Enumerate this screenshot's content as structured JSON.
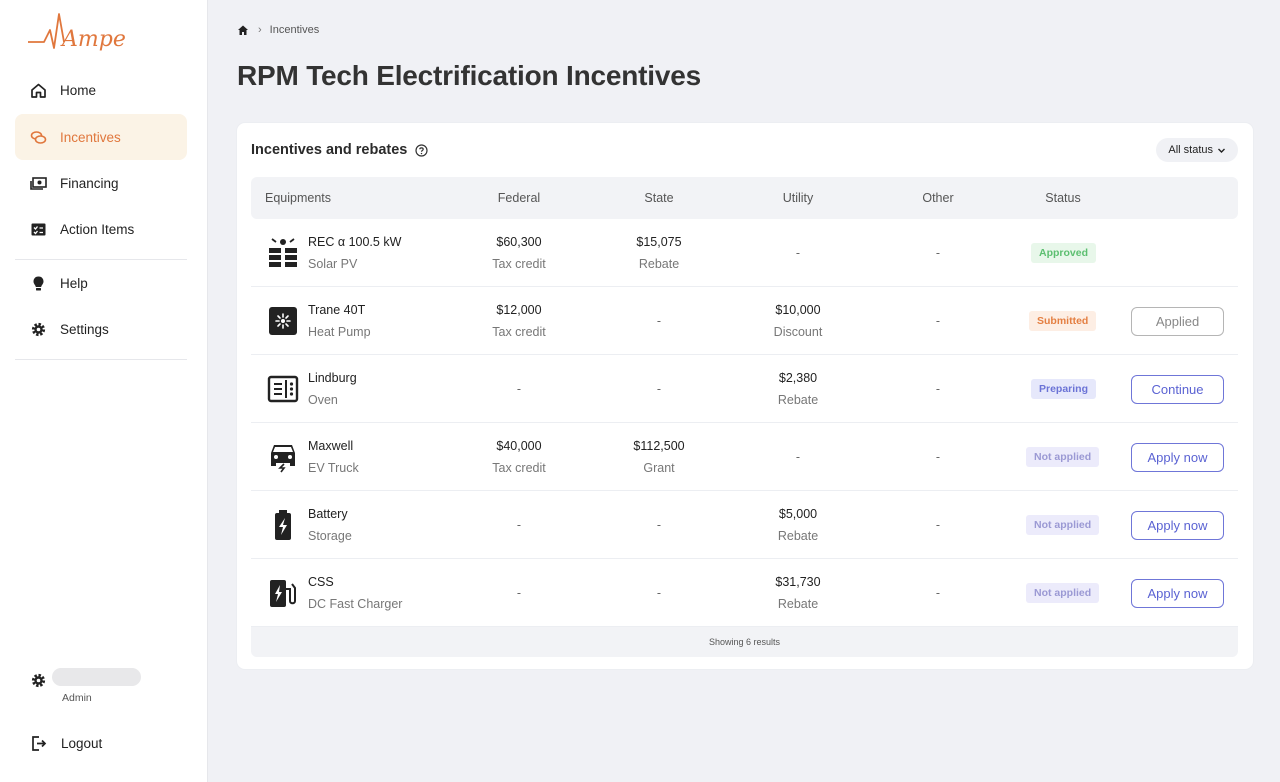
{
  "app": {
    "logo_text": "Ampere"
  },
  "sidebar": {
    "items": [
      {
        "label": "Home",
        "icon": "home-icon"
      },
      {
        "label": "Incentives",
        "icon": "coins-icon",
        "active": true
      },
      {
        "label": "Financing",
        "icon": "money-icon"
      },
      {
        "label": "Action Items",
        "icon": "checklist-icon"
      },
      {
        "label": "Help",
        "icon": "lightbulb-icon"
      },
      {
        "label": "Settings",
        "icon": "gear-icon"
      }
    ],
    "user": {
      "role": "Admin"
    },
    "logout_label": "Logout"
  },
  "breadcrumb": {
    "current": "Incentives"
  },
  "page": {
    "title": "RPM Tech Electrification Incentives"
  },
  "card": {
    "title": "Incentives and rebates",
    "filter_label": "All status",
    "columns": [
      "Equipments",
      "Federal",
      "State",
      "Utility",
      "Other",
      "Status"
    ],
    "rows": [
      {
        "name": "REC α 100.5 kW",
        "type": "Solar PV",
        "icon": "solar-panel-icon",
        "federal": {
          "value": "$60,300",
          "sub": "Tax credit"
        },
        "state": {
          "value": "$15,075",
          "sub": "Rebate"
        },
        "utility": {
          "value": "-",
          "sub": ""
        },
        "other": "-",
        "status": "Approved",
        "status_kind": "approved",
        "action": ""
      },
      {
        "name": "Trane 40T",
        "type": "Heat Pump",
        "icon": "heat-pump-icon",
        "federal": {
          "value": "$12,000",
          "sub": "Tax credit"
        },
        "state": {
          "value": "-",
          "sub": ""
        },
        "utility": {
          "value": "$10,000",
          "sub": "Discount"
        },
        "other": "-",
        "status": "Submitted",
        "status_kind": "submitted",
        "action": "Applied"
      },
      {
        "name": "Lindburg",
        "type": "Oven",
        "icon": "oven-icon",
        "federal": {
          "value": "-",
          "sub": ""
        },
        "state": {
          "value": "-",
          "sub": ""
        },
        "utility": {
          "value": "$2,380",
          "sub": "Rebate"
        },
        "other": "-",
        "status": "Preparing",
        "status_kind": "preparing",
        "action": "Continue"
      },
      {
        "name": "Maxwell",
        "type": "EV Truck",
        "icon": "ev-truck-icon",
        "federal": {
          "value": "$40,000",
          "sub": "Tax credit"
        },
        "state": {
          "value": "$112,500",
          "sub": "Grant"
        },
        "utility": {
          "value": "-",
          "sub": ""
        },
        "other": "-",
        "status": "Not applied",
        "status_kind": "notapplied",
        "action": "Apply now"
      },
      {
        "name": "Battery",
        "type": "Storage",
        "icon": "battery-icon",
        "federal": {
          "value": "-",
          "sub": ""
        },
        "state": {
          "value": "-",
          "sub": ""
        },
        "utility": {
          "value": "$5,000",
          "sub": "Rebate"
        },
        "other": "-",
        "status": "Not applied",
        "status_kind": "notapplied",
        "action": "Apply now"
      },
      {
        "name": "CSS",
        "type": "DC Fast Charger",
        "icon": "ev-charger-icon",
        "federal": {
          "value": "-",
          "sub": ""
        },
        "state": {
          "value": "-",
          "sub": ""
        },
        "utility": {
          "value": "$31,730",
          "sub": "Rebate"
        },
        "other": "-",
        "status": "Not applied",
        "status_kind": "notapplied",
        "action": "Apply now"
      }
    ],
    "footer": "Showing 6 results"
  },
  "colors": {
    "brand": "#e0773d",
    "accent": "#5b63d3"
  }
}
